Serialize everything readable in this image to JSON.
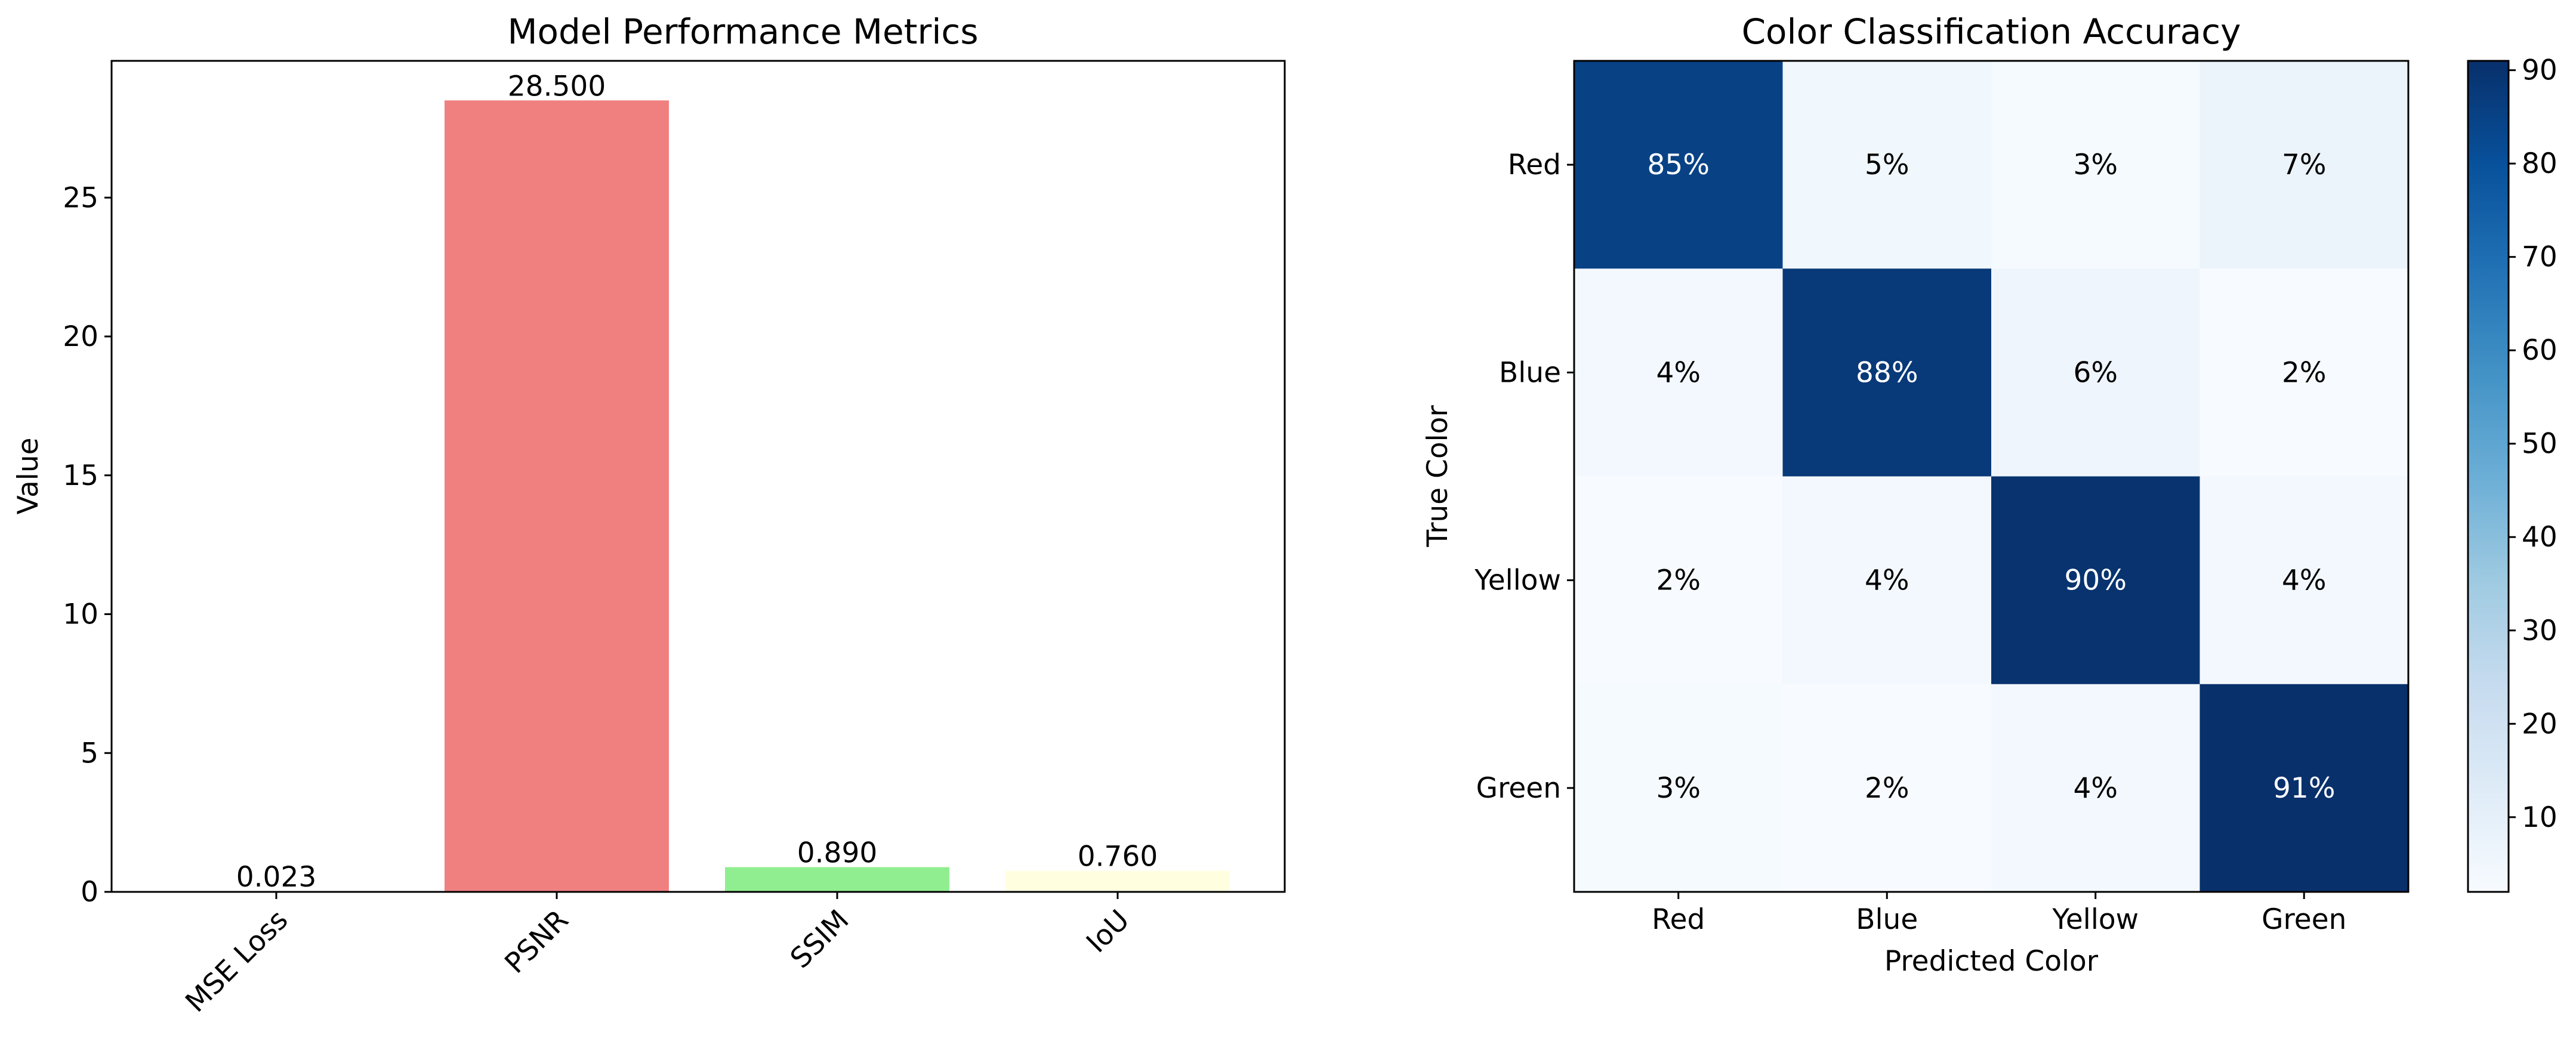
{
  "chart_data": [
    {
      "type": "bar",
      "title": "Model Performance Metrics",
      "xlabel": "",
      "ylabel": "Value",
      "categories": [
        "MSE Loss",
        "PSNR",
        "SSIM",
        "IoU"
      ],
      "values": [
        0.023,
        28.5,
        0.89,
        0.76
      ],
      "value_labels": [
        "0.023",
        "28.500",
        "0.890",
        "0.760"
      ],
      "bar_colors": [
        "#87ceeb",
        "#f08080",
        "#90ee90",
        "#ffffe0"
      ],
      "ylim": [
        0,
        29.925
      ],
      "yticks": [
        0,
        5,
        10,
        15,
        20,
        25
      ],
      "grid": false
    },
    {
      "type": "heatmap",
      "title": "Color Classification Accuracy",
      "xlabel": "Predicted Color",
      "ylabel": "True Color",
      "x_categories": [
        "Red",
        "Blue",
        "Yellow",
        "Green"
      ],
      "y_categories": [
        "Red",
        "Blue",
        "Yellow",
        "Green"
      ],
      "values": [
        [
          85,
          5,
          3,
          7
        ],
        [
          4,
          88,
          6,
          2
        ],
        [
          2,
          4,
          90,
          4
        ],
        [
          3,
          2,
          4,
          91
        ]
      ],
      "cell_format": "%",
      "colormap": "Blues",
      "colorbar": {
        "range": [
          2,
          91
        ],
        "ticks": [
          10,
          20,
          30,
          40,
          50,
          60,
          70,
          80,
          90
        ]
      }
    }
  ]
}
